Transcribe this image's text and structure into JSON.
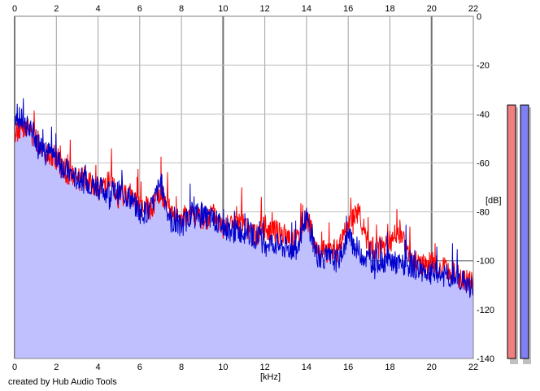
{
  "credit": "created by Hub Audio Tools",
  "colors": {
    "channel_left": "#ff0000",
    "channel_right": "#0000cc",
    "fill": "#c0c0ff",
    "meter_left_fill": "#f07f7f",
    "meter_right_fill": "#8080f0"
  },
  "chart_data": {
    "type": "line",
    "xlabel": "[kHz]",
    "ylabel": "[dB]",
    "xlim": [
      0,
      22
    ],
    "ylim": [
      -140,
      0
    ],
    "x_ticks": [
      0,
      2,
      4,
      6,
      8,
      10,
      12,
      14,
      16,
      18,
      20,
      22
    ],
    "x_tick_labels": [
      "0",
      "2",
      "4",
      "6",
      "8",
      "10",
      "12",
      "14",
      "16",
      "18",
      "20",
      "22"
    ],
    "y_ticks": [
      0,
      -20,
      -40,
      -60,
      -80,
      -100,
      -120,
      -140
    ],
    "y_tick_labels": [
      "0",
      "-20",
      "-40",
      "-60",
      "-80",
      "-100",
      "-120",
      "-140"
    ],
    "grid": true,
    "series": [
      {
        "color": "#ff0000",
        "x": [
          0,
          0.5,
          1,
          1.5,
          2,
          2.5,
          3,
          3.5,
          4,
          4.5,
          5,
          5.5,
          6,
          6.5,
          7,
          7.5,
          8,
          8.5,
          9,
          9.5,
          10,
          10.5,
          11,
          11.5,
          12,
          12.5,
          13,
          13.5,
          14,
          14.5,
          15,
          15.5,
          16,
          16.5,
          17,
          17.5,
          18,
          18.5,
          19,
          19.5,
          20,
          20.5,
          21,
          21.5,
          22
        ],
        "y": [
          -48,
          -44,
          -50,
          -55,
          -58,
          -64,
          -67,
          -66,
          -71,
          -68,
          -74,
          -72,
          -78,
          -79,
          -72,
          -80,
          -83,
          -80,
          -84,
          -81,
          -86,
          -84,
          -86,
          -90,
          -86,
          -88,
          -90,
          -92,
          -82,
          -96,
          -96,
          -96,
          -86,
          -80,
          -95,
          -95,
          -92,
          -88,
          -100,
          -102,
          -101,
          -103,
          -105,
          -107,
          -110
        ]
      },
      {
        "color": "#0000cc",
        "x": [
          0,
          0.5,
          1,
          1.5,
          2,
          2.5,
          3,
          3.5,
          4,
          4.5,
          5,
          5.5,
          6,
          6.5,
          7,
          7.5,
          8,
          8.5,
          9,
          9.5,
          10,
          10.5,
          11,
          11.5,
          12,
          12.5,
          13,
          13.5,
          14,
          14.5,
          15,
          15.5,
          16,
          16.5,
          17,
          17.5,
          18,
          18.5,
          19,
          19.5,
          20,
          20.5,
          21,
          21.5,
          22
        ],
        "y": [
          -40,
          -44,
          -50,
          -55,
          -58,
          -63,
          -67,
          -68,
          -70,
          -72,
          -72,
          -74,
          -80,
          -80,
          -68,
          -84,
          -86,
          -80,
          -82,
          -83,
          -86,
          -88,
          -88,
          -90,
          -92,
          -93,
          -95,
          -95,
          -82,
          -98,
          -99,
          -100,
          -90,
          -96,
          -100,
          -100,
          -100,
          -102,
          -102,
          -104,
          -105,
          -106,
          -107,
          -108,
          -112
        ]
      }
    ],
    "meters": [
      {
        "channel": "left",
        "level_db": -18
      },
      {
        "channel": "right",
        "level_db": -18
      }
    ]
  }
}
